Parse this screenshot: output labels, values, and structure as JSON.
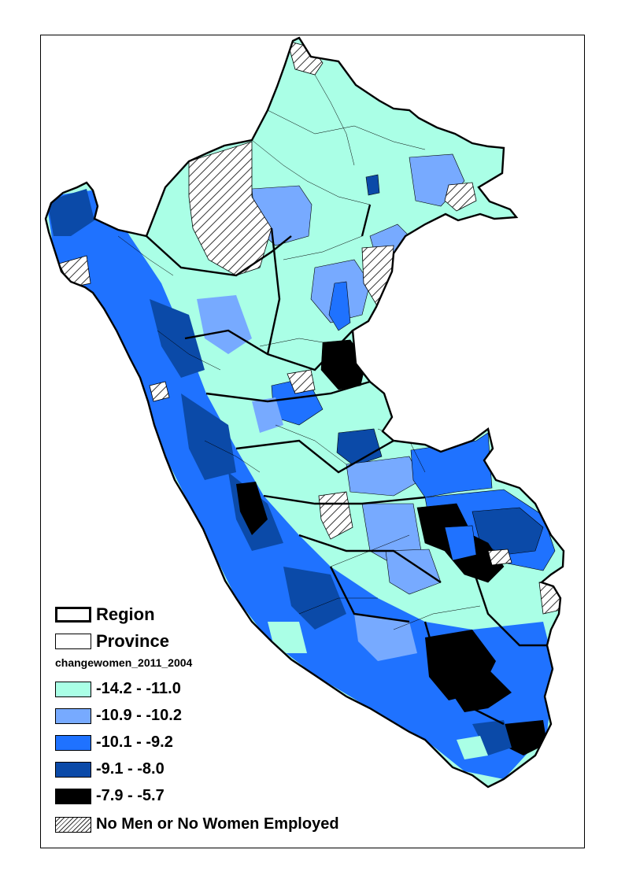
{
  "legend": {
    "region_label": "Region",
    "province_label": "Province",
    "field_name": "changewomen_2011_2004",
    "classes": [
      {
        "label": "-14.2 - -11.0",
        "color": "#aaffe6"
      },
      {
        "label": "-10.9 - -10.2",
        "color": "#77aaff"
      },
      {
        "label": "-10.1 - -9.2",
        "color": "#1f72ff"
      },
      {
        "label": "-9.1 - -8.0",
        "color": "#0b4aa8"
      },
      {
        "label": "-7.9 - -5.7",
        "color": "#000000"
      }
    ],
    "no_data_label": "No Men or No Women Employed"
  }
}
